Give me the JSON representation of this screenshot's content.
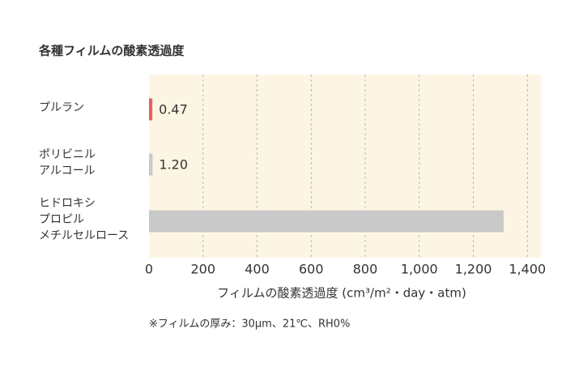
{
  "chart_data": {
    "type": "bar",
    "orientation": "horizontal",
    "title": "各種フィルムの酸素透過度",
    "categories": [
      [
        "プルラン"
      ],
      [
        "ポリビニル",
        "アルコール"
      ],
      [
        "ヒドロキシ",
        "プロピル",
        "メチルセルロース"
      ]
    ],
    "values": [
      0.47,
      1.2,
      1300
    ],
    "value_labels": [
      "0.47",
      "1.20",
      null
    ],
    "colors": [
      "#e8605a",
      "#c9c9c9",
      "#c9c9c9"
    ],
    "xlim": [
      0,
      1450
    ],
    "xticks": [
      0,
      200,
      400,
      600,
      800,
      {
        "value": 1000,
        "label": "1,000"
      },
      {
        "value": 1200,
        "label": "1,200"
      },
      {
        "value": 1400,
        "label": "1,400"
      }
    ],
    "xlabel": "フィルムの酸素透過度 (cm³/m²・day・atm)",
    "note": "※フィルムの厚み：30μm、21℃、RH0%",
    "grid": true,
    "background": "#fdf5e4"
  }
}
